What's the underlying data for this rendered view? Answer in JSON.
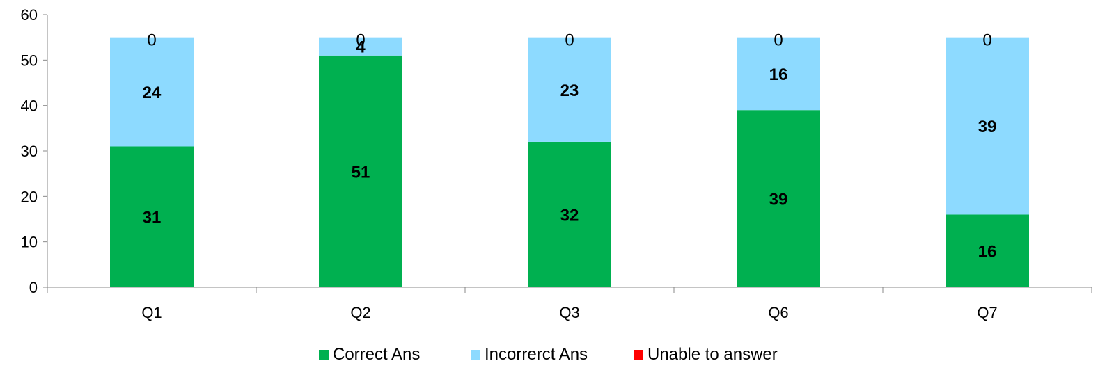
{
  "chart_data": {
    "type": "bar",
    "stacked": true,
    "categories": [
      "Q1",
      "Q2",
      "Q3",
      "Q6",
      "Q7"
    ],
    "series": [
      {
        "name": "Correct Ans",
        "color": "#00B050",
        "values": [
          31,
          51,
          32,
          39,
          16
        ]
      },
      {
        "name": "Incorrerct Ans",
        "color": "#8DDAFF",
        "values": [
          24,
          4,
          23,
          16,
          39
        ]
      },
      {
        "name": "Unable to answer",
        "color": "#FF0000",
        "values": [
          0,
          0,
          0,
          0,
          0
        ]
      }
    ],
    "yticks": [
      "0",
      "10",
      "20",
      "30",
      "40",
      "50",
      "60"
    ],
    "ylim": [
      0,
      60
    ],
    "grid": false,
    "legend_position": "bottom"
  }
}
